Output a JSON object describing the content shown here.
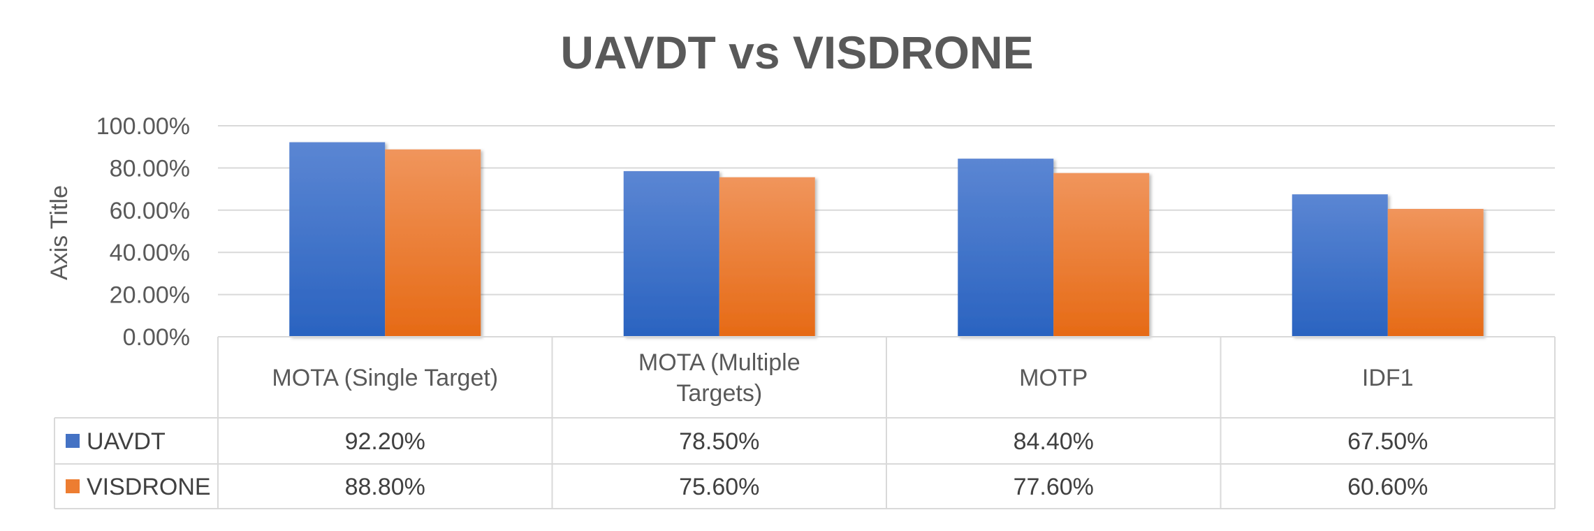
{
  "chart_data": {
    "type": "bar",
    "title": "UAVDT vs VISDRONE",
    "xlabel": "",
    "ylabel": "Axis Title",
    "ylim": [
      0,
      1
    ],
    "ytick_step": 0.2,
    "ytick_labels": [
      "0.00%",
      "20.00%",
      "40.00%",
      "60.00%",
      "80.00%",
      "100.00%"
    ],
    "grid": true,
    "legend": "data-table",
    "categories": [
      "MOTA (Single Target)",
      "MOTA (Multiple Targets)",
      "MOTP",
      "IDF1"
    ],
    "category_label_lines": [
      [
        "MOTA (Single Target)"
      ],
      [
        "MOTA (Multiple",
        "Targets)"
      ],
      [
        "MOTP"
      ],
      [
        "IDF1"
      ]
    ],
    "series": [
      {
        "name": "UAVDT",
        "color": "#4472C4",
        "values": [
          0.922,
          0.785,
          0.844,
          0.675
        ],
        "labels": [
          "92.20%",
          "78.50%",
          "84.40%",
          "67.50%"
        ]
      },
      {
        "name": "VISDRONE",
        "color": "#ED7D31",
        "values": [
          0.888,
          0.756,
          0.776,
          0.606
        ],
        "labels": [
          "88.80%",
          "75.60%",
          "77.60%",
          "60.60%"
        ]
      }
    ]
  }
}
